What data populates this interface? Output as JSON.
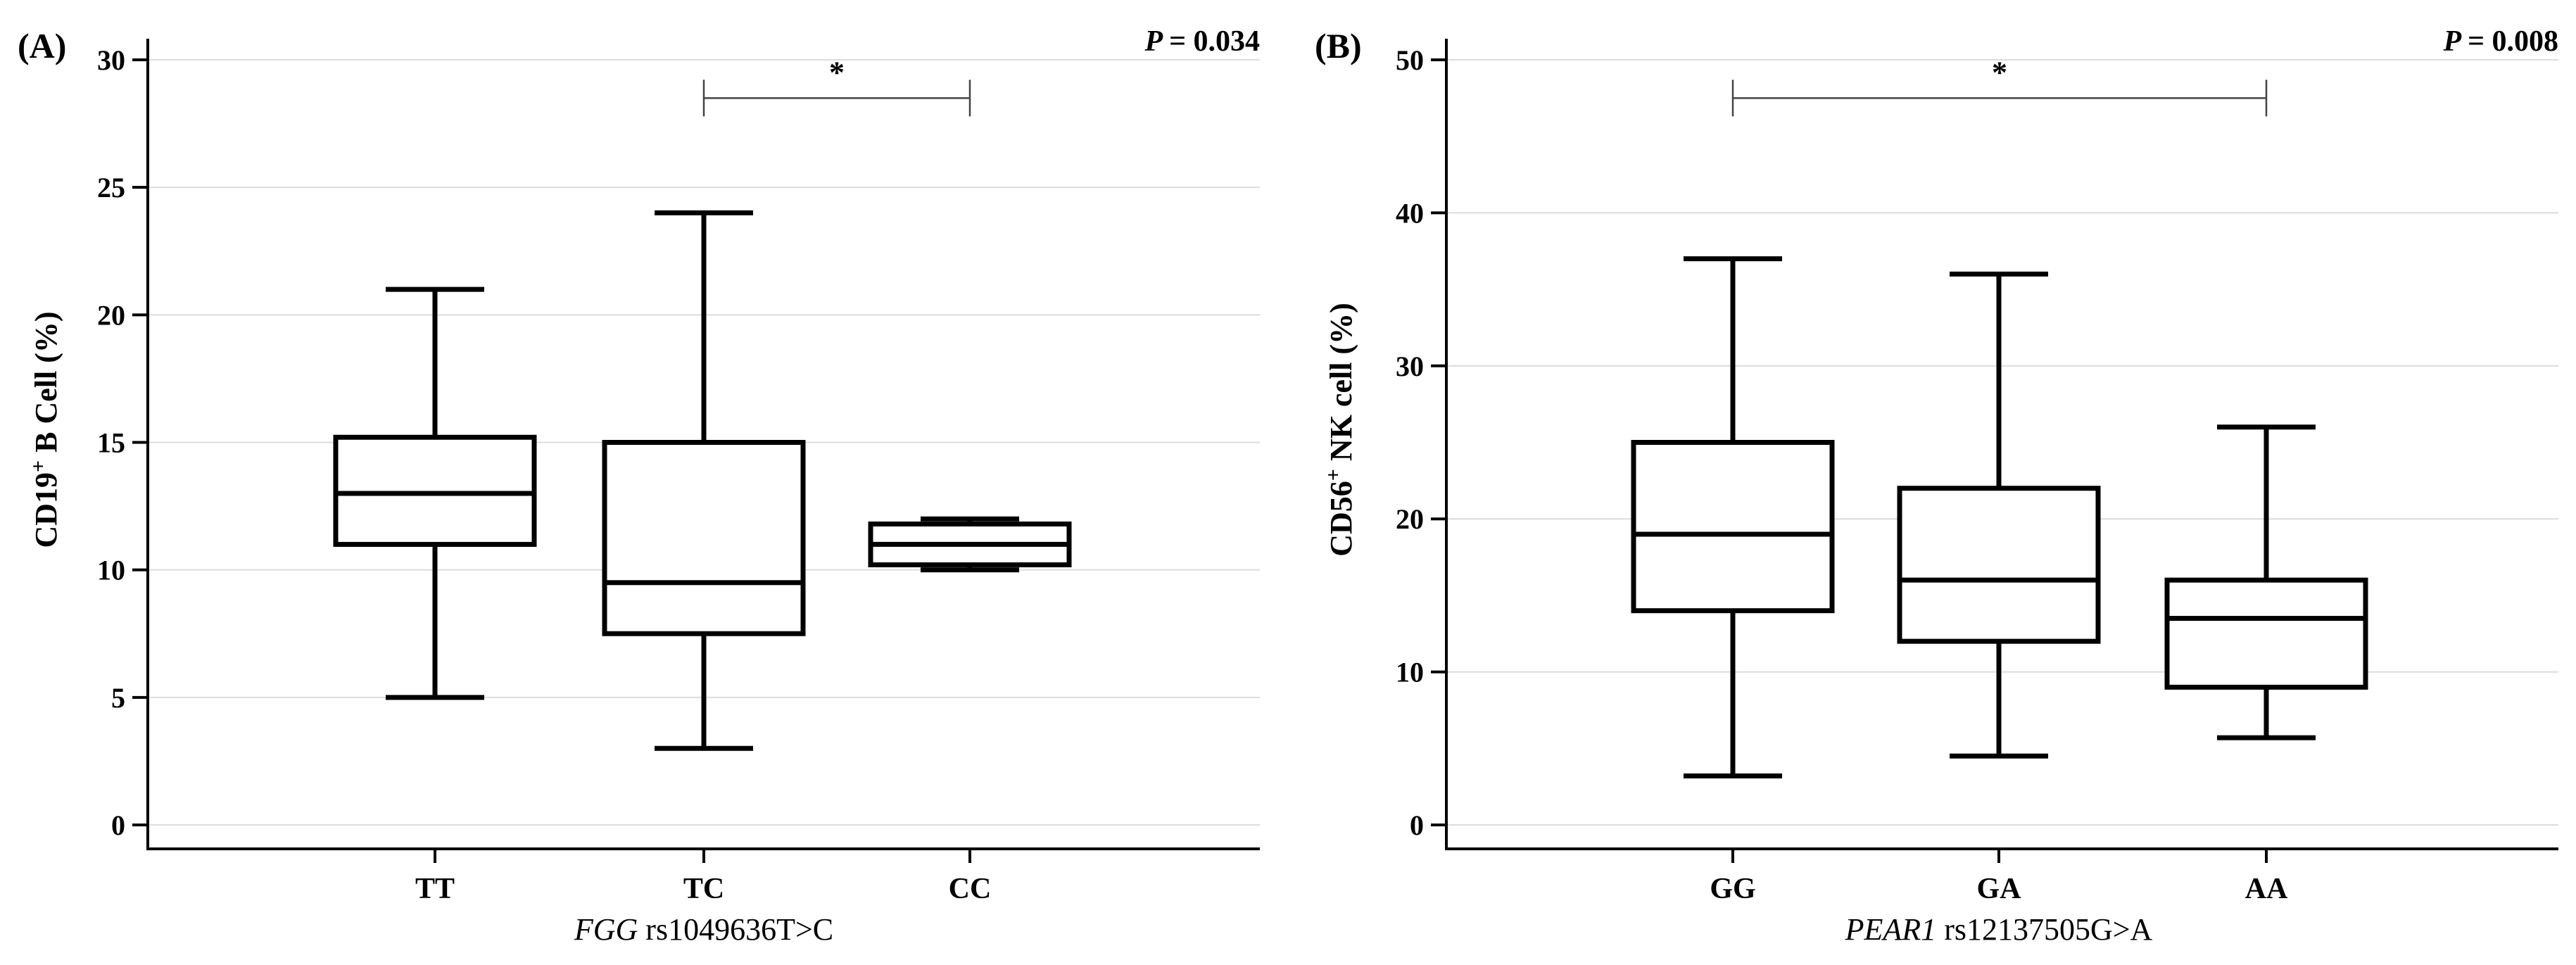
{
  "chart_data": [
    {
      "type": "boxplot",
      "panel_label": "(A)",
      "p_value_prefix": "P",
      "p_value_text": "= 0.034",
      "ylabel_main": "CD19",
      "ylabel_sup": "+",
      "ylabel_rest": " B Cell (%)",
      "xlabel_gene": "FGG",
      "xlabel_rest": " rs1049636T>C",
      "ylim": [
        0,
        30
      ],
      "yticks": [
        0,
        5,
        10,
        15,
        20,
        25,
        30
      ],
      "categories": [
        "TT",
        "TC",
        "CC"
      ],
      "boxes": [
        {
          "min": 5,
          "q1": 11,
          "median": 13,
          "q3": 15.2,
          "max": 21
        },
        {
          "min": 3,
          "q1": 7.5,
          "median": 9.5,
          "q3": 15,
          "max": 24
        },
        {
          "min": 10,
          "q1": 10.2,
          "median": 11,
          "q3": 11.8,
          "max": 12
        }
      ],
      "significance": {
        "from": "TC",
        "to": "CC",
        "y": 28.5,
        "label": "*"
      },
      "grid": true
    },
    {
      "type": "boxplot",
      "panel_label": "(B)",
      "p_value_prefix": "P",
      "p_value_text": "= 0.008",
      "ylabel_main": "CD56",
      "ylabel_sup": "+",
      "ylabel_rest": " NK cell (%)",
      "xlabel_gene": "PEAR1",
      "xlabel_rest": " rs12137505G>A",
      "ylim": [
        0,
        50
      ],
      "yticks": [
        0,
        10,
        20,
        30,
        40,
        50
      ],
      "categories": [
        "GG",
        "GA",
        "AA"
      ],
      "boxes": [
        {
          "min": 3.2,
          "q1": 14,
          "median": 19,
          "q3": 25,
          "max": 37
        },
        {
          "min": 4.5,
          "q1": 12,
          "median": 16,
          "q3": 22,
          "max": 36
        },
        {
          "min": 5.7,
          "q1": 9,
          "median": 13.5,
          "q3": 16,
          "max": 26
        }
      ],
      "significance": {
        "from": "GG",
        "to": "AA",
        "y": 47.5,
        "label": "*"
      },
      "grid": true
    }
  ]
}
